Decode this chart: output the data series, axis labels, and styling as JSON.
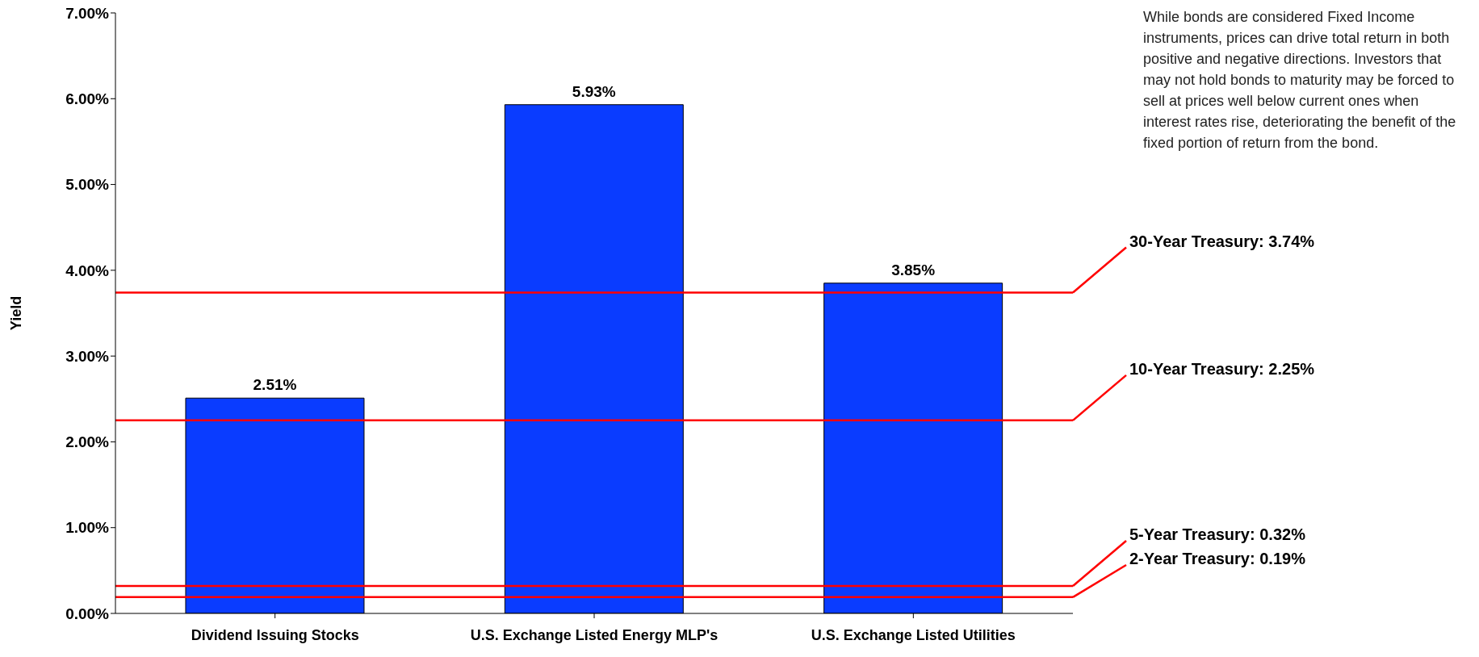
{
  "chart_data": {
    "type": "bar",
    "ylabel": "Yield",
    "categories": [
      "Dividend Issuing Stocks",
      "U.S. Exchange Listed Energy MLP's",
      "U.S. Exchange Listed Utilities"
    ],
    "values": [
      2.51,
      5.93,
      3.85
    ],
    "color": "#0a3cff",
    "value_labels": [
      "2.51%",
      "5.93%",
      "3.85%"
    ],
    "ylim": [
      0,
      7
    ],
    "yticks": [
      {
        "value": 0,
        "label": "0.00%"
      },
      {
        "value": 1,
        "label": "1.00%"
      },
      {
        "value": 2,
        "label": "2.00%"
      },
      {
        "value": 3,
        "label": "3.00%"
      },
      {
        "value": 4,
        "label": "4.00%"
      },
      {
        "value": 5,
        "label": "5.00%"
      },
      {
        "value": 6,
        "label": "6.00%"
      },
      {
        "value": 7,
        "label": "7.00%"
      }
    ],
    "ref_lines": [
      {
        "axis": "y",
        "value": 3.74,
        "label": "30-Year Treasury: 3.74%",
        "color": "#ff0000"
      },
      {
        "axis": "y",
        "value": 2.25,
        "label": "10-Year Treasury: 2.25%",
        "color": "#ff0000"
      },
      {
        "axis": "y",
        "value": 0.32,
        "label": "5-Year Treasury: 0.32%",
        "color": "#ff0000"
      },
      {
        "axis": "y",
        "value": 0.19,
        "label": "2-Year Treasury: 0.19%",
        "color": "#ff0000"
      }
    ],
    "annotations": [
      "While bonds are considered Fixed Income instruments, prices can drive total return in both positive and negative directions. Investors that may not hold bonds to maturity may be forced to sell at prices well below current ones when interest rates rise, deteriorating the benefit of the fixed portion of return from the bond."
    ],
    "grid": false,
    "legend": false
  }
}
